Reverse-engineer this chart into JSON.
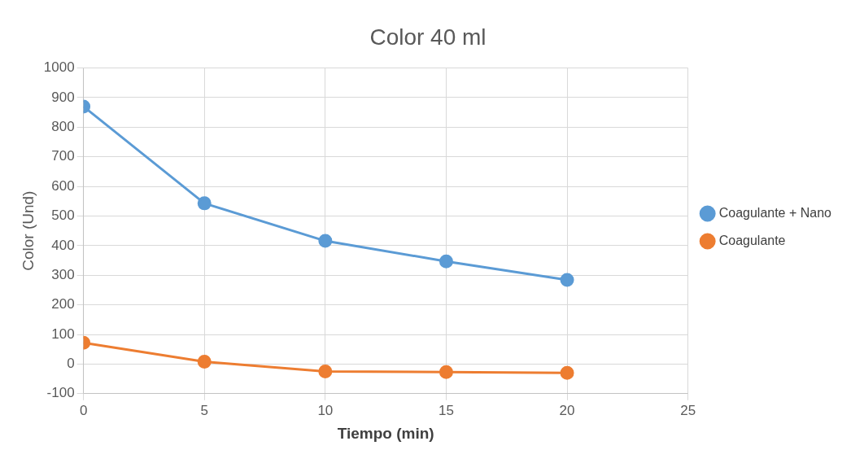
{
  "chart_data": {
    "type": "line",
    "title": "Color 40 ml",
    "xlabel": "Tiempo (min)",
    "ylabel": "Color (Und)",
    "x": [
      0,
      5,
      10,
      15,
      20
    ],
    "series": [
      {
        "name": "Coagulante + Nano",
        "color": "#5b9bd5",
        "values": [
          870,
          543,
          416,
          347,
          284
        ]
      },
      {
        "name": "Coagulante",
        "color": "#ed7d31",
        "values": [
          72,
          8,
          -25,
          -27,
          -30
        ]
      }
    ],
    "xlim": [
      0,
      25
    ],
    "xticks": [
      0,
      5,
      10,
      15,
      20,
      25
    ],
    "ylim": [
      -100,
      1000
    ],
    "yticks": [
      -100,
      0,
      100,
      200,
      300,
      400,
      500,
      600,
      700,
      800,
      900,
      1000
    ],
    "grid": true,
    "legend": "right",
    "marker": "circle",
    "line_style": "solid"
  }
}
